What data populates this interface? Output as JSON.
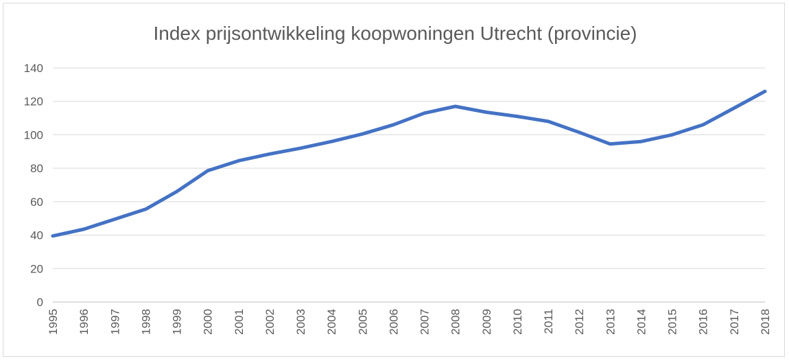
{
  "chart_data": {
    "type": "line",
    "title": "Index prijsontwikkeling koopwoningen Utrecht (provincie)",
    "xlabel": "",
    "ylabel": "",
    "categories": [
      "1995",
      "1996",
      "1997",
      "1998",
      "1999",
      "2000",
      "2001",
      "2002",
      "2003",
      "2004",
      "2005",
      "2006",
      "2007",
      "2008",
      "2009",
      "2010",
      "2011",
      "2012",
      "2013",
      "2014",
      "2015",
      "2016",
      "2017",
      "2018"
    ],
    "series": [
      {
        "values": [
          39.5,
          43.5,
          49.5,
          55.5,
          66,
          78.5,
          84.5,
          88.5,
          92,
          96,
          100.5,
          106,
          113,
          117,
          113.5,
          111,
          108,
          101.5,
          94.5,
          96,
          100,
          106,
          116,
          126
        ],
        "color": "#4472c4"
      }
    ],
    "ylim": [
      0,
      140
    ],
    "yticks": [
      0,
      20,
      40,
      60,
      80,
      100,
      120,
      140
    ],
    "grid": true,
    "legend": "none"
  }
}
